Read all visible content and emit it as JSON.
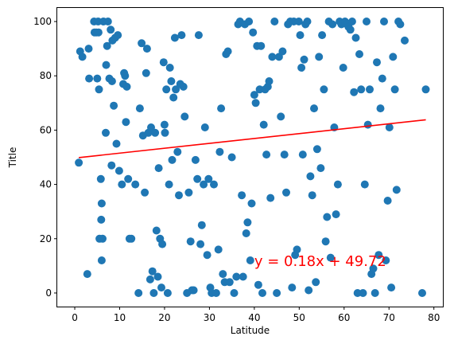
{
  "chart_data": {
    "type": "scatter",
    "xlabel": "Latitude",
    "ylabel": "Title",
    "xlim": [
      -3.9,
      82.0
    ],
    "ylim": [
      -5,
      105
    ],
    "xticks": [
      0,
      10,
      20,
      30,
      40,
      50,
      60,
      70,
      80
    ],
    "yticks": [
      0,
      20,
      40,
      60,
      80,
      100
    ],
    "grid": false,
    "point_color": "#1f77b4",
    "regression": {
      "slope": 0.18,
      "intercept": 49.72,
      "x_range": [
        0.9,
        78.2
      ],
      "color": "#ff0000",
      "equation": "y = 0.18x + 49.72",
      "label_x": 40,
      "label_y": 10
    },
    "points": [
      [
        0.9,
        48
      ],
      [
        1.2,
        89
      ],
      [
        1.7,
        87
      ],
      [
        2.8,
        7
      ],
      [
        3.1,
        90
      ],
      [
        3.2,
        79
      ],
      [
        4.3,
        100
      ],
      [
        4.4,
        96
      ],
      [
        4.8,
        96
      ],
      [
        5.0,
        79
      ],
      [
        5.2,
        100
      ],
      [
        5.3,
        96
      ],
      [
        5.4,
        75
      ],
      [
        5.5,
        20
      ],
      [
        5.8,
        42
      ],
      [
        5.9,
        27
      ],
      [
        6.0,
        33
      ],
      [
        6.0,
        12
      ],
      [
        6.2,
        20
      ],
      [
        6.4,
        100
      ],
      [
        6.9,
        59
      ],
      [
        7.0,
        84
      ],
      [
        7.2,
        91
      ],
      [
        7.4,
        100
      ],
      [
        7.7,
        79
      ],
      [
        8.0,
        97
      ],
      [
        8.2,
        47
      ],
      [
        8.3,
        78
      ],
      [
        8.4,
        93
      ],
      [
        8.7,
        69
      ],
      [
        9.0,
        94
      ],
      [
        9.3,
        55
      ],
      [
        9.6,
        95
      ],
      [
        9.9,
        45
      ],
      [
        10.5,
        40
      ],
      [
        10.8,
        77
      ],
      [
        11.0,
        81
      ],
      [
        11.2,
        80
      ],
      [
        11.4,
        63
      ],
      [
        11.6,
        76
      ],
      [
        11.9,
        42
      ],
      [
        12.2,
        20
      ],
      [
        12.6,
        20
      ],
      [
        13.5,
        40
      ],
      [
        14.2,
        0
      ],
      [
        14.5,
        68
      ],
      [
        14.9,
        92
      ],
      [
        15.2,
        58
      ],
      [
        15.6,
        37
      ],
      [
        15.9,
        81
      ],
      [
        16.1,
        90
      ],
      [
        16.4,
        59
      ],
      [
        16.8,
        5
      ],
      [
        17.0,
        61
      ],
      [
        17.3,
        8
      ],
      [
        17.6,
        0
      ],
      [
        17.9,
        59
      ],
      [
        18.2,
        23
      ],
      [
        18.5,
        6
      ],
      [
        18.7,
        46
      ],
      [
        19.0,
        20
      ],
      [
        19.3,
        2
      ],
      [
        19.5,
        18
      ],
      [
        19.8,
        85
      ],
      [
        20.0,
        62
      ],
      [
        20.1,
        59
      ],
      [
        20.4,
        75
      ],
      [
        20.7,
        0
      ],
      [
        21.0,
        40
      ],
      [
        21.2,
        83
      ],
      [
        21.5,
        78
      ],
      [
        21.7,
        49
      ],
      [
        22.0,
        72
      ],
      [
        22.3,
        94
      ],
      [
        22.5,
        75
      ],
      [
        22.9,
        52
      ],
      [
        23.2,
        36
      ],
      [
        23.5,
        77
      ],
      [
        23.8,
        95
      ],
      [
        24.2,
        76
      ],
      [
        24.5,
        65
      ],
      [
        25.0,
        0
      ],
      [
        25.4,
        37
      ],
      [
        25.8,
        19
      ],
      [
        26.1,
        1
      ],
      [
        26.5,
        1
      ],
      [
        26.9,
        49
      ],
      [
        27.3,
        42
      ],
      [
        27.6,
        95
      ],
      [
        28.0,
        18
      ],
      [
        28.3,
        25
      ],
      [
        28.7,
        40
      ],
      [
        29.0,
        61
      ],
      [
        29.5,
        14
      ],
      [
        29.8,
        42
      ],
      [
        30.2,
        2
      ],
      [
        30.5,
        0
      ],
      [
        31.0,
        40
      ],
      [
        31.5,
        0
      ],
      [
        32.0,
        16
      ],
      [
        32.3,
        52
      ],
      [
        32.6,
        68
      ],
      [
        33.0,
        7
      ],
      [
        33.4,
        4
      ],
      [
        33.7,
        88
      ],
      [
        34.1,
        89
      ],
      [
        34.5,
        4
      ],
      [
        35.0,
        50
      ],
      [
        35.5,
        0
      ],
      [
        36.0,
        6
      ],
      [
        36.4,
        99
      ],
      [
        36.8,
        100
      ],
      [
        37.2,
        36
      ],
      [
        37.5,
        6
      ],
      [
        37.9,
        99
      ],
      [
        38.2,
        22
      ],
      [
        38.5,
        26
      ],
      [
        38.8,
        100
      ],
      [
        39.1,
        12
      ],
      [
        39.4,
        33
      ],
      [
        39.7,
        96
      ],
      [
        40.0,
        73
      ],
      [
        40.3,
        70
      ],
      [
        40.6,
        91
      ],
      [
        40.9,
        3
      ],
      [
        41.2,
        75
      ],
      [
        41.5,
        91
      ],
      [
        41.8,
        0
      ],
      [
        42.1,
        62
      ],
      [
        42.4,
        75
      ],
      [
        42.7,
        51
      ],
      [
        43.0,
        76
      ],
      [
        43.3,
        78
      ],
      [
        43.6,
        35
      ],
      [
        44.0,
        87
      ],
      [
        44.5,
        100
      ],
      [
        45.0,
        0
      ],
      [
        45.5,
        87
      ],
      [
        45.9,
        65
      ],
      [
        46.3,
        89
      ],
      [
        46.7,
        51
      ],
      [
        47.1,
        37
      ],
      [
        47.5,
        99
      ],
      [
        48.0,
        100
      ],
      [
        48.4,
        2
      ],
      [
        48.8,
        100
      ],
      [
        49.1,
        14
      ],
      [
        49.5,
        16
      ],
      [
        49.9,
        100
      ],
      [
        50.2,
        95
      ],
      [
        50.5,
        83
      ],
      [
        50.8,
        51
      ],
      [
        51.1,
        86
      ],
      [
        51.4,
        99
      ],
      [
        51.8,
        100
      ],
      [
        52.1,
        1
      ],
      [
        52.5,
        43
      ],
      [
        52.9,
        36
      ],
      [
        53.3,
        68
      ],
      [
        53.7,
        4
      ],
      [
        54.0,
        53
      ],
      [
        54.4,
        87
      ],
      [
        54.8,
        46
      ],
      [
        55.1,
        95
      ],
      [
        55.5,
        75
      ],
      [
        55.9,
        19
      ],
      [
        56.2,
        28
      ],
      [
        56.6,
        100
      ],
      [
        57.0,
        13
      ],
      [
        57.4,
        99
      ],
      [
        57.8,
        61
      ],
      [
        58.2,
        29
      ],
      [
        58.6,
        40
      ],
      [
        59.0,
        100
      ],
      [
        59.4,
        99
      ],
      [
        59.8,
        83
      ],
      [
        60.2,
        100
      ],
      [
        60.6,
        99
      ],
      [
        61.0,
        98
      ],
      [
        61.4,
        97
      ],
      [
        61.8,
        100
      ],
      [
        62.2,
        74
      ],
      [
        62.6,
        94
      ],
      [
        63.0,
        0
      ],
      [
        63.4,
        88
      ],
      [
        63.8,
        75
      ],
      [
        64.2,
        0
      ],
      [
        64.6,
        40
      ],
      [
        65.0,
        100
      ],
      [
        65.3,
        62
      ],
      [
        65.7,
        75
      ],
      [
        66.1,
        7
      ],
      [
        66.5,
        9
      ],
      [
        66.9,
        0
      ],
      [
        67.3,
        85
      ],
      [
        67.7,
        14
      ],
      [
        68.1,
        68
      ],
      [
        68.5,
        79
      ],
      [
        68.9,
        100
      ],
      [
        69.3,
        12
      ],
      [
        69.7,
        34
      ],
      [
        70.1,
        61
      ],
      [
        70.5,
        2
      ],
      [
        70.9,
        87
      ],
      [
        71.3,
        75
      ],
      [
        71.7,
        38
      ],
      [
        72.1,
        100
      ],
      [
        72.5,
        99
      ],
      [
        73.5,
        93
      ],
      [
        77.4,
        0
      ],
      [
        78.2,
        75
      ]
    ]
  }
}
